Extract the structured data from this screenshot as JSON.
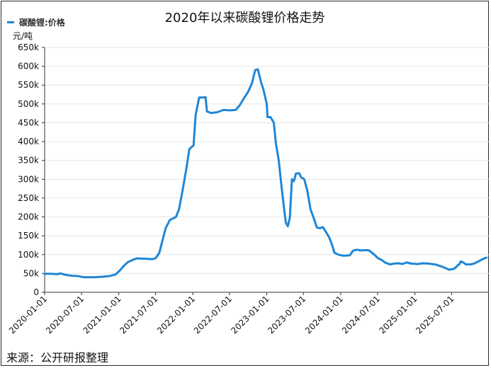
{
  "chart_data": {
    "type": "line",
    "title": "2020年以来碳酸锂价格走势",
    "ylabel": "元/吨",
    "xlabel": "",
    "ylim": [
      0,
      650000
    ],
    "yticks": [
      0,
      50000,
      100000,
      150000,
      200000,
      250000,
      300000,
      350000,
      400000,
      450000,
      500000,
      550000,
      600000,
      650000
    ],
    "ytick_labels": [
      "0",
      "50k",
      "100k",
      "150k",
      "200k",
      "250k",
      "300k",
      "350k",
      "400k",
      "450k",
      "500k",
      "550k",
      "600k",
      "650k"
    ],
    "xlim": [
      "2020-01-01",
      "2026-01-01"
    ],
    "xtick_labels": [
      "2020-01-01",
      "2020-07-01",
      "2021-01-01",
      "2021-07-01",
      "2022-01-01",
      "2022-07-01",
      "2023-01-01",
      "2023-07-01",
      "2024-01-01",
      "2024-07-01",
      "2025-01-01",
      "2025-07-01"
    ],
    "grid": true,
    "legend_position": "top-left",
    "series": [
      {
        "name": "碳酸锂:价格",
        "color": "#1f86d6",
        "points": [
          [
            "2020-01-01",
            49000
          ],
          [
            "2020-02-01",
            49000
          ],
          [
            "2020-03-01",
            48000
          ],
          [
            "2020-03-20",
            50000
          ],
          [
            "2020-04-15",
            46000
          ],
          [
            "2020-05-15",
            44000
          ],
          [
            "2020-06-15",
            43000
          ],
          [
            "2020-07-01",
            41000
          ],
          [
            "2020-07-20",
            40000
          ],
          [
            "2020-09-01",
            40000
          ],
          [
            "2020-10-01",
            41000
          ],
          [
            "2020-11-15",
            43000
          ],
          [
            "2020-12-15",
            47000
          ],
          [
            "2021-01-10",
            60000
          ],
          [
            "2021-01-25",
            70000
          ],
          [
            "2021-02-15",
            80000
          ],
          [
            "2021-03-15",
            87000
          ],
          [
            "2021-04-01",
            90000
          ],
          [
            "2021-05-15",
            89000
          ],
          [
            "2021-06-15",
            88000
          ],
          [
            "2021-07-01",
            90000
          ],
          [
            "2021-07-20",
            105000
          ],
          [
            "2021-08-01",
            130000
          ],
          [
            "2021-08-20",
            170000
          ],
          [
            "2021-09-10",
            192000
          ],
          [
            "2021-10-10",
            200000
          ],
          [
            "2021-10-25",
            220000
          ],
          [
            "2021-11-10",
            265000
          ],
          [
            "2021-12-01",
            330000
          ],
          [
            "2021-12-15",
            380000
          ],
          [
            "2022-01-05",
            390000
          ],
          [
            "2022-01-15",
            470000
          ],
          [
            "2022-02-01",
            517000
          ],
          [
            "2022-02-20",
            517000
          ],
          [
            "2022-03-05",
            518000
          ],
          [
            "2022-03-12",
            480000
          ],
          [
            "2022-04-01",
            476000
          ],
          [
            "2022-05-01",
            478000
          ],
          [
            "2022-06-01",
            484000
          ],
          [
            "2022-07-01",
            483000
          ],
          [
            "2022-08-01",
            484000
          ],
          [
            "2022-08-20",
            496000
          ],
          [
            "2022-09-10",
            515000
          ],
          [
            "2022-10-01",
            532000
          ],
          [
            "2022-10-20",
            555000
          ],
          [
            "2022-11-05",
            590000
          ],
          [
            "2022-11-18",
            592000
          ],
          [
            "2022-12-05",
            555000
          ],
          [
            "2022-12-15",
            540000
          ],
          [
            "2023-01-01",
            500000
          ],
          [
            "2023-01-05",
            465000
          ],
          [
            "2023-01-20",
            465000
          ],
          [
            "2023-02-05",
            450000
          ],
          [
            "2023-02-15",
            395000
          ],
          [
            "2023-03-01",
            350000
          ],
          [
            "2023-03-15",
            280000
          ],
          [
            "2023-03-28",
            220000
          ],
          [
            "2023-04-05",
            185000
          ],
          [
            "2023-04-15",
            175000
          ],
          [
            "2023-04-25",
            198000
          ],
          [
            "2023-05-05",
            300000
          ],
          [
            "2023-05-15",
            295000
          ],
          [
            "2023-05-25",
            315000
          ],
          [
            "2023-06-10",
            316000
          ],
          [
            "2023-06-20",
            305000
          ],
          [
            "2023-07-05",
            300000
          ],
          [
            "2023-07-20",
            270000
          ],
          [
            "2023-08-05",
            220000
          ],
          [
            "2023-08-20",
            198000
          ],
          [
            "2023-09-05",
            172000
          ],
          [
            "2023-09-20",
            170000
          ],
          [
            "2023-10-05",
            173000
          ],
          [
            "2023-10-20",
            160000
          ],
          [
            "2023-11-05",
            146000
          ],
          [
            "2023-11-20",
            125000
          ],
          [
            "2023-12-01",
            105000
          ],
          [
            "2023-12-20",
            100000
          ],
          [
            "2024-01-15",
            97000
          ],
          [
            "2024-02-15",
            98000
          ],
          [
            "2024-03-01",
            110000
          ],
          [
            "2024-03-20",
            113000
          ],
          [
            "2024-04-10",
            111000
          ],
          [
            "2024-05-01",
            112000
          ],
          [
            "2024-05-20",
            111000
          ],
          [
            "2024-06-15",
            100000
          ],
          [
            "2024-07-01",
            91000
          ],
          [
            "2024-07-20",
            86000
          ],
          [
            "2024-08-10",
            78000
          ],
          [
            "2024-09-01",
            74000
          ],
          [
            "2024-09-20",
            76000
          ],
          [
            "2024-10-10",
            77000
          ],
          [
            "2024-11-01",
            75000
          ],
          [
            "2024-11-20",
            79000
          ],
          [
            "2024-12-15",
            76000
          ],
          [
            "2025-01-15",
            75000
          ],
          [
            "2025-02-10",
            77000
          ],
          [
            "2025-03-10",
            76000
          ],
          [
            "2025-04-10",
            74000
          ],
          [
            "2025-05-10",
            69000
          ],
          [
            "2025-06-01",
            64000
          ],
          [
            "2025-06-20",
            60000
          ],
          [
            "2025-07-10",
            62000
          ],
          [
            "2025-07-20",
            65000
          ],
          [
            "2025-08-01",
            72000
          ],
          [
            "2025-08-10",
            75000
          ],
          [
            "2025-08-15",
            82000
          ],
          [
            "2025-08-25",
            80000
          ],
          [
            "2025-09-10",
            74000
          ],
          [
            "2025-10-01",
            74000
          ],
          [
            "2025-10-20",
            76000
          ],
          [
            "2025-11-10",
            82000
          ],
          [
            "2025-12-01",
            88000
          ],
          [
            "2025-12-20",
            92000
          ]
        ]
      }
    ]
  },
  "footer": {
    "source": "来源：公开研报整理"
  }
}
